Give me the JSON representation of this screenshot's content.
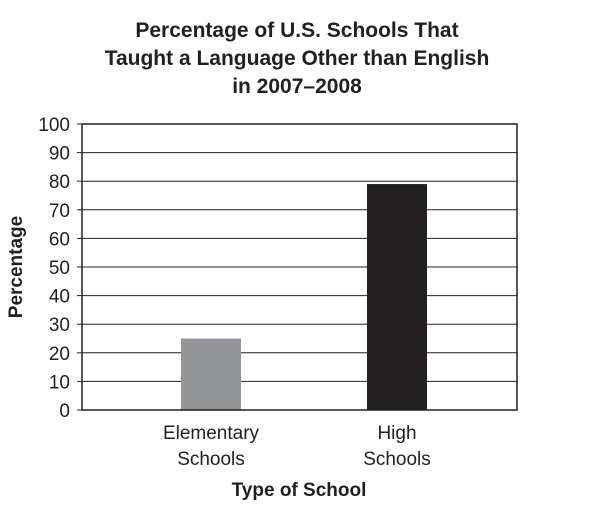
{
  "chart_data": {
    "type": "bar",
    "title_lines": [
      "Percentage of U.S. Schools That",
      "Taught a Language Other than English",
      "in 2007–2008"
    ],
    "xlabel": "Type of School",
    "ylabel": "Percentage",
    "categories": [
      [
        "Elementary",
        "Schools"
      ],
      [
        "High",
        "Schools"
      ]
    ],
    "values": [
      25,
      79
    ],
    "ylim": [
      0,
      100
    ],
    "yticks": [
      "0",
      "10",
      "20",
      "30",
      "40",
      "50",
      "60",
      "70",
      "80",
      "90",
      "100"
    ],
    "grid": true,
    "legend": "none",
    "bar_colors": [
      "#939598",
      "#231f20"
    ],
    "axis_color": "#231f20"
  }
}
